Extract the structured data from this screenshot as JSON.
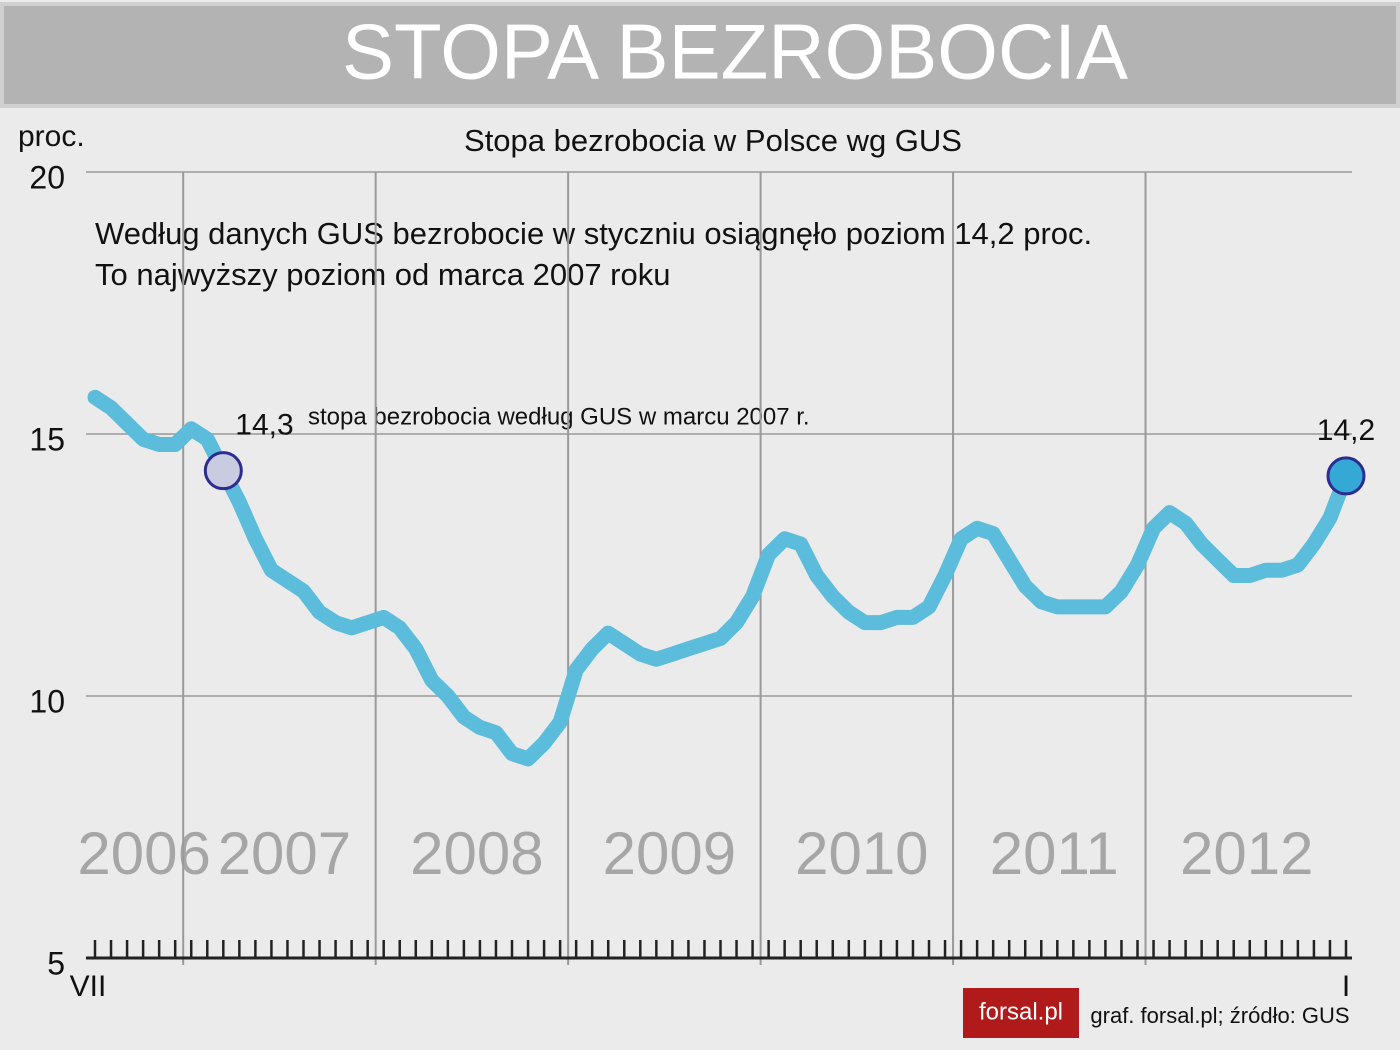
{
  "chart_data": {
    "type": "line",
    "header": "STOPA BEZROBOCIA",
    "title": "Stopa bezrobocia w Polsce wg GUS",
    "y_label": "proc.",
    "annotation_lines": [
      "Według danych GUS bezrobocie w styczniu osiągnęło poziom 14,2 proc.",
      "To najwyższy poziom od marca 2007 roku"
    ],
    "point_note": "stopa bezrobocia według GUS w marcu 2007 r.",
    "source": "graf. forsal.pl; źródło: GUS",
    "logo": "forsal.pl",
    "year_labels": [
      "2006",
      "2007",
      "2008",
      "2009",
      "2010",
      "2011",
      "2012"
    ],
    "categories": [
      "VII",
      null,
      null,
      null,
      null,
      null,
      null,
      null,
      null,
      null,
      null,
      null,
      null,
      null,
      null,
      null,
      null,
      null,
      null,
      null,
      null,
      null,
      null,
      null,
      null,
      null,
      null,
      null,
      null,
      null,
      null,
      null,
      null,
      null,
      null,
      null,
      null,
      null,
      null,
      null,
      null,
      null,
      null,
      null,
      null,
      null,
      null,
      null,
      null,
      null,
      null,
      null,
      null,
      null,
      null,
      null,
      null,
      null,
      null,
      null,
      null,
      null,
      null,
      null,
      null,
      null,
      null,
      null,
      null,
      null,
      null,
      null,
      null,
      null,
      null,
      null,
      null,
      null,
      "I"
    ],
    "values": [
      15.7,
      15.5,
      15.2,
      14.9,
      14.8,
      14.8,
      15.1,
      14.9,
      14.3,
      13.7,
      13.0,
      12.4,
      12.2,
      12.0,
      11.6,
      11.4,
      11.3,
      11.4,
      11.5,
      11.3,
      10.9,
      10.3,
      10.0,
      9.6,
      9.4,
      9.3,
      8.9,
      8.8,
      9.1,
      9.5,
      10.5,
      10.9,
      11.2,
      11.0,
      10.8,
      10.7,
      10.8,
      10.9,
      11.0,
      11.1,
      11.4,
      11.9,
      12.7,
      13.0,
      12.9,
      12.3,
      11.9,
      11.6,
      11.4,
      11.4,
      11.5,
      11.5,
      11.7,
      12.3,
      13.0,
      13.2,
      13.1,
      12.6,
      12.1,
      11.8,
      11.7,
      11.7,
      11.7,
      11.7,
      12.0,
      12.5,
      13.2,
      13.5,
      13.3,
      12.9,
      12.6,
      12.3,
      12.3,
      12.4,
      12.4,
      12.5,
      12.9,
      13.4,
      14.2
    ],
    "value_labels": [
      null,
      null,
      null,
      null,
      null,
      null,
      null,
      null,
      "14,3",
      null,
      null,
      null,
      null,
      null,
      null,
      null,
      null,
      null,
      null,
      null,
      null,
      null,
      null,
      null,
      null,
      null,
      null,
      null,
      null,
      null,
      null,
      null,
      null,
      null,
      null,
      null,
      null,
      null,
      null,
      null,
      null,
      null,
      null,
      null,
      null,
      null,
      null,
      null,
      null,
      null,
      null,
      null,
      null,
      null,
      null,
      null,
      null,
      null,
      null,
      null,
      null,
      null,
      null,
      null,
      null,
      null,
      null,
      null,
      null,
      null,
      null,
      null,
      null,
      null,
      null,
      null,
      null,
      null,
      "14,2"
    ],
    "color": "#5bbcdc",
    "ylim": [
      5,
      20
    ],
    "yticks": [
      5,
      10,
      15,
      20
    ],
    "grid": true
  }
}
